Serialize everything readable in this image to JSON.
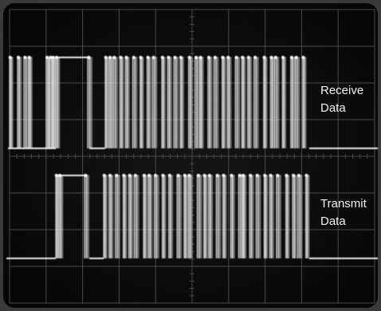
{
  "labels": {
    "receive_line1": "Receive",
    "receive_line2": "Data",
    "transmit_line1": "Transmit",
    "transmit_line2": "Data"
  },
  "colors": {
    "screen_background": "#0c0c0c",
    "bezel": "#3a3a3a",
    "graticule": "#4a4a4a",
    "trace": "#e8e8e8",
    "label_text": "#f2f2f2"
  }
}
